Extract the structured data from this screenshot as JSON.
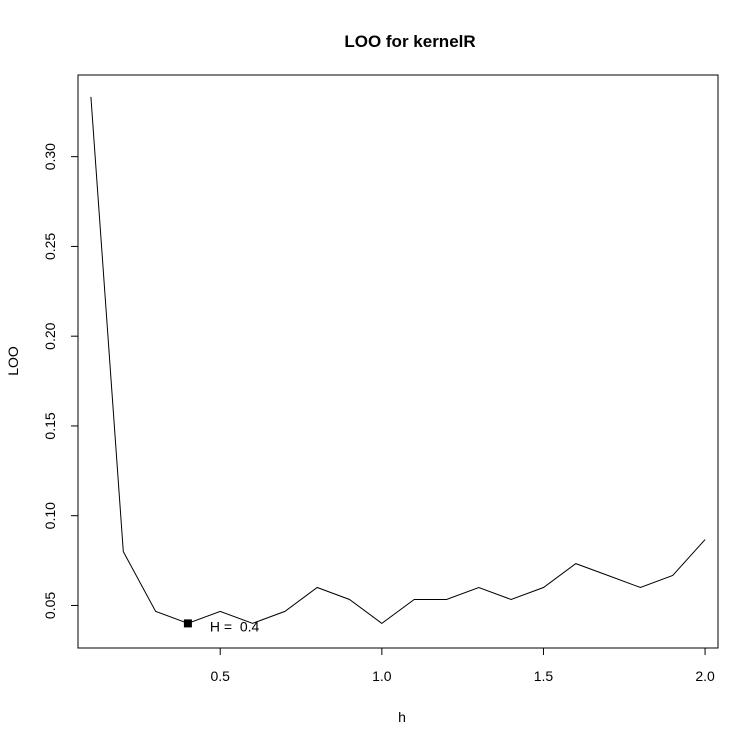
{
  "chart_data": {
    "type": "line",
    "title": "LOO for kernelR",
    "xlabel": "h",
    "ylabel": "LOO",
    "xlim": [
      0.06,
      2.04
    ],
    "ylim": [
      0.0263,
      0.3455
    ],
    "x_ticks": [
      "0.5",
      "1.0",
      "1.5",
      "2.0"
    ],
    "y_ticks": [
      "0.05",
      "0.10",
      "0.15",
      "0.20",
      "0.25",
      "0.30"
    ],
    "grid": false,
    "series": [
      {
        "x": [
          0.1,
          0.2,
          0.3,
          0.4,
          0.5,
          0.6,
          0.7,
          0.8,
          0.9,
          1.0,
          1.1,
          1.2,
          1.3,
          1.4,
          1.5,
          1.6,
          1.7,
          1.8,
          1.9,
          2.0
        ],
        "values": [
          0.3333,
          0.08,
          0.0467,
          0.04,
          0.0467,
          0.04,
          0.0467,
          0.06,
          0.0533,
          0.04,
          0.0533,
          0.0533,
          0.06,
          0.0533,
          0.06,
          0.0733,
          0.0667,
          0.06,
          0.0667,
          0.0867
        ]
      }
    ],
    "highlight": {
      "x": 0.4,
      "y": 0.04,
      "label": "H =  0.4"
    }
  }
}
